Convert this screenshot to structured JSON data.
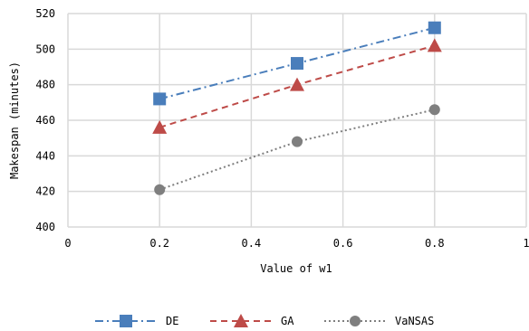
{
  "chart_data": {
    "type": "scatter",
    "xlabel": "Value of w1",
    "ylabel": "Makespan (minutes)",
    "xlim": [
      0,
      1
    ],
    "ylim": [
      400,
      520
    ],
    "x_ticks": [
      0,
      0.2,
      0.4,
      0.6,
      0.8,
      1
    ],
    "x_tick_labels": [
      "0",
      "0.2",
      "0.4",
      "0.6",
      "0.8",
      "1"
    ],
    "y_ticks": [
      400,
      420,
      440,
      460,
      480,
      500,
      520
    ],
    "y_tick_labels": [
      "400",
      "420",
      "440",
      "460",
      "480",
      "500",
      "520"
    ],
    "grid": true,
    "legend_position": "bottom",
    "series": [
      {
        "name": "DE",
        "x": [
          0.2,
          0.5,
          0.8
        ],
        "y": [
          472,
          492,
          512
        ],
        "color": "#4a7ebb",
        "marker": "square",
        "line_style": "dash-dot"
      },
      {
        "name": "GA",
        "x": [
          0.2,
          0.5,
          0.8
        ],
        "y": [
          456,
          480,
          502
        ],
        "color": "#be4b48",
        "marker": "triangle",
        "line_style": "dashed"
      },
      {
        "name": "VaNSAS",
        "x": [
          0.2,
          0.5,
          0.8
        ],
        "y": [
          421,
          448,
          466
        ],
        "color": "#7f7f7f",
        "marker": "circle",
        "line_style": "dotted"
      }
    ]
  }
}
